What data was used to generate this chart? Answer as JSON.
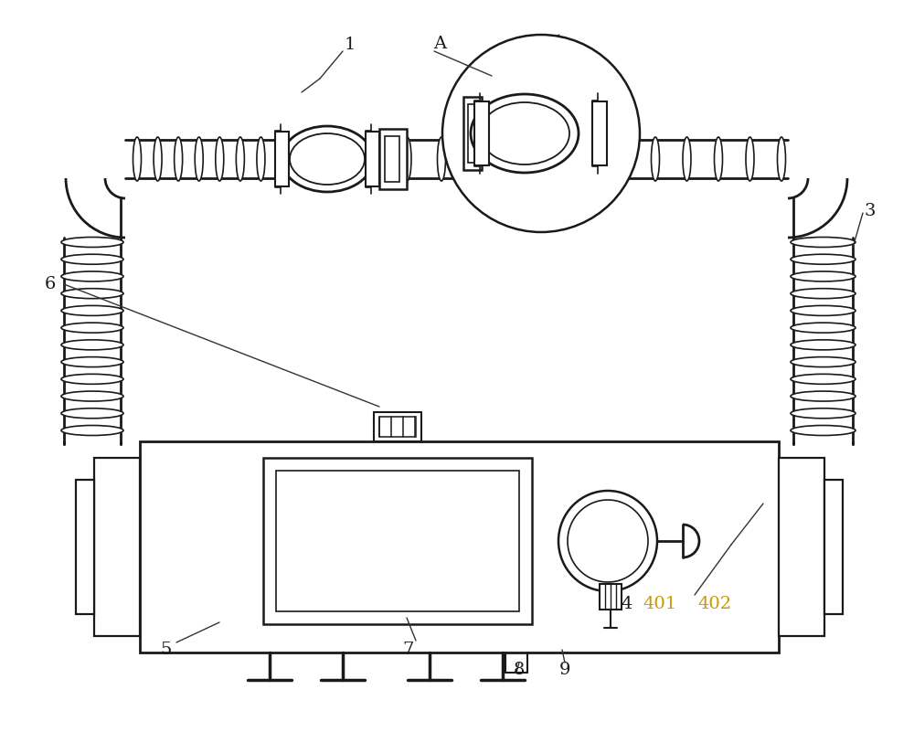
{
  "bg_color": "#ffffff",
  "line_color": "#1a1a1a",
  "line_width": 1.8,
  "thick_lw": 2.0,
  "fig_width": 10.0,
  "fig_height": 8.01,
  "label_color": "#1a1a1a",
  "label_color_num": "#cc9900",
  "label_fontsize": 14
}
